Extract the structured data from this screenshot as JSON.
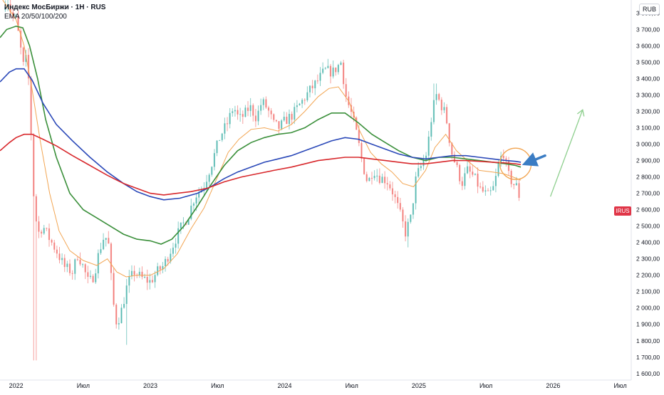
{
  "header": {
    "title": "Индекс МосБиржи · 1Н · RUS",
    "indicator": "EMA 20/50/100/200"
  },
  "currency_label": "RUB",
  "price_tag": "IRUS",
  "colors": {
    "up": "#26a69a",
    "down": "#ef5350",
    "ema20": "#f2a552",
    "ema50": "#3a8f3a",
    "ema100": "#2a48b8",
    "ema200": "#d8282c",
    "arrow_up": "#8ecf8e",
    "arrow_pointer": "#3b7dc4",
    "circle": "#f2a552"
  },
  "chart_data": {
    "type": "line",
    "title": "Индекс МосБиржи · 1Н · RUS",
    "subtitle": "EMA 20/50/100/200",
    "x_ticks": [
      "2022",
      "Июл",
      "2023",
      "Июл",
      "2024",
      "Июл",
      "2025",
      "Июл",
      "2026",
      "Июл"
    ],
    "x_tick_dates": [
      2022.0,
      2022.5,
      2023.0,
      2023.5,
      2024.0,
      2024.5,
      2025.0,
      2025.5,
      2026.0,
      2026.5
    ],
    "y_ticks": [
      "1 600,00",
      "1 700,00",
      "1 800,00",
      "1 900,00",
      "2 000,00",
      "2 100,00",
      "2 200,00",
      "2 300,00",
      "2 400,00",
      "2 500,00",
      "2 600,00",
      "2 700,00",
      "2 800,00",
      "2 900,00",
      "3 000,00",
      "3 100,00",
      "3 200,00",
      "3 300,00",
      "3 400,00",
      "3 500,00",
      "3 600,00",
      "3 700,00",
      "3 800,00"
    ],
    "ylim": [
      1560,
      3880
    ],
    "xlim": [
      2021.88,
      2026.55
    ],
    "grid": false,
    "price_key_points": [
      [
        2021.9,
        3820
      ],
      [
        2021.93,
        3900
      ],
      [
        2021.97,
        3780
      ],
      [
        2022.0,
        3760
      ],
      [
        2022.03,
        3600
      ],
      [
        2022.06,
        3450
      ],
      [
        2022.08,
        3550
      ],
      [
        2022.1,
        3300
      ],
      [
        2022.13,
        2700
      ],
      [
        2022.16,
        2450
      ],
      [
        2022.2,
        2500
      ],
      [
        2022.25,
        2420
      ],
      [
        2022.3,
        2350
      ],
      [
        2022.36,
        2250
      ],
      [
        2022.42,
        2220
      ],
      [
        2022.46,
        2330
      ],
      [
        2022.5,
        2250
      ],
      [
        2022.54,
        2150
      ],
      [
        2022.58,
        2200
      ],
      [
        2022.62,
        2350
      ],
      [
        2022.66,
        2450
      ],
      [
        2022.69,
        2380
      ],
      [
        2022.72,
        2050
      ],
      [
        2022.75,
        1900
      ],
      [
        2022.79,
        2000
      ],
      [
        2022.83,
        2150
      ],
      [
        2022.88,
        2220
      ],
      [
        2022.94,
        2180
      ],
      [
        2023.0,
        2160
      ],
      [
        2023.05,
        2220
      ],
      [
        2023.1,
        2260
      ],
      [
        2023.16,
        2370
      ],
      [
        2023.22,
        2480
      ],
      [
        2023.28,
        2560
      ],
      [
        2023.33,
        2680
      ],
      [
        2023.4,
        2750
      ],
      [
        2023.46,
        2890
      ],
      [
        2023.52,
        3050
      ],
      [
        2023.57,
        3120
      ],
      [
        2023.62,
        3230
      ],
      [
        2023.66,
        3150
      ],
      [
        2023.7,
        3180
      ],
      [
        2023.74,
        3230
      ],
      [
        2023.79,
        3160
      ],
      [
        2023.83,
        3260
      ],
      [
        2023.87,
        3220
      ],
      [
        2023.92,
        3120
      ],
      [
        2023.96,
        3100
      ],
      [
        2024.0,
        3140
      ],
      [
        2024.06,
        3180
      ],
      [
        2024.12,
        3250
      ],
      [
        2024.18,
        3320
      ],
      [
        2024.24,
        3380
      ],
      [
        2024.3,
        3450
      ],
      [
        2024.36,
        3440
      ],
      [
        2024.42,
        3500
      ],
      [
        2024.46,
        3280
      ],
      [
        2024.5,
        3180
      ],
      [
        2024.54,
        3050
      ],
      [
        2024.58,
        2880
      ],
      [
        2024.62,
        2760
      ],
      [
        2024.66,
        2850
      ],
      [
        2024.7,
        2800
      ],
      [
        2024.76,
        2780
      ],
      [
        2024.8,
        2720
      ],
      [
        2024.85,
        2600
      ],
      [
        2024.9,
        2460
      ],
      [
        2024.94,
        2550
      ],
      [
        2024.98,
        2800
      ],
      [
        2025.02,
        2870
      ],
      [
        2025.06,
        2950
      ],
      [
        2025.1,
        3200
      ],
      [
        2025.13,
        3300
      ],
      [
        2025.16,
        3250
      ],
      [
        2025.2,
        3180
      ],
      [
        2025.24,
        2960
      ],
      [
        2025.28,
        2860
      ],
      [
        2025.32,
        2760
      ],
      [
        2025.36,
        2840
      ],
      [
        2025.41,
        2800
      ],
      [
        2025.46,
        2720
      ],
      [
        2025.52,
        2680
      ],
      [
        2025.56,
        2740
      ],
      [
        2025.6,
        2900
      ],
      [
        2025.63,
        2950
      ],
      [
        2025.66,
        2820
      ],
      [
        2025.7,
        2760
      ],
      [
        2025.73,
        2740
      ],
      [
        2025.76,
        2640
      ]
    ],
    "series": [
      {
        "name": "EMA 20",
        "color": "#f2a552",
        "points": [
          [
            2021.9,
            3880
          ],
          [
            2022.0,
            3760
          ],
          [
            2022.06,
            3600
          ],
          [
            2022.12,
            3330
          ],
          [
            2022.18,
            3020
          ],
          [
            2022.25,
            2700
          ],
          [
            2022.32,
            2470
          ],
          [
            2022.4,
            2350
          ],
          [
            2022.5,
            2290
          ],
          [
            2022.6,
            2260
          ],
          [
            2022.68,
            2300
          ],
          [
            2022.75,
            2220
          ],
          [
            2022.82,
            2190
          ],
          [
            2022.9,
            2200
          ],
          [
            2023.0,
            2200
          ],
          [
            2023.1,
            2240
          ],
          [
            2023.2,
            2330
          ],
          [
            2023.3,
            2480
          ],
          [
            2023.4,
            2610
          ],
          [
            2023.5,
            2800
          ],
          [
            2023.58,
            2950
          ],
          [
            2023.66,
            3030
          ],
          [
            2023.75,
            3090
          ],
          [
            2023.85,
            3100
          ],
          [
            2023.95,
            3080
          ],
          [
            2024.05,
            3120
          ],
          [
            2024.15,
            3200
          ],
          [
            2024.25,
            3290
          ],
          [
            2024.33,
            3340
          ],
          [
            2024.4,
            3350
          ],
          [
            2024.48,
            3260
          ],
          [
            2024.56,
            3080
          ],
          [
            2024.64,
            2950
          ],
          [
            2024.72,
            2880
          ],
          [
            2024.8,
            2830
          ],
          [
            2024.88,
            2760
          ],
          [
            2024.96,
            2740
          ],
          [
            2025.05,
            2840
          ],
          [
            2025.12,
            2980
          ],
          [
            2025.2,
            3060
          ],
          [
            2025.28,
            2960
          ],
          [
            2025.36,
            2900
          ],
          [
            2025.45,
            2840
          ],
          [
            2025.55,
            2830
          ],
          [
            2025.63,
            2820
          ],
          [
            2025.7,
            2800
          ],
          [
            2025.76,
            2780
          ]
        ]
      },
      {
        "name": "EMA 50",
        "color": "#3a8f3a",
        "points": [
          [
            2021.88,
            3650
          ],
          [
            2021.93,
            3700
          ],
          [
            2022.0,
            3720
          ],
          [
            2022.05,
            3710
          ],
          [
            2022.1,
            3600
          ],
          [
            2022.16,
            3400
          ],
          [
            2022.22,
            3150
          ],
          [
            2022.3,
            2920
          ],
          [
            2022.4,
            2700
          ],
          [
            2022.5,
            2600
          ],
          [
            2022.6,
            2550
          ],
          [
            2022.7,
            2500
          ],
          [
            2022.8,
            2450
          ],
          [
            2022.9,
            2420
          ],
          [
            2023.0,
            2410
          ],
          [
            2023.08,
            2390
          ],
          [
            2023.16,
            2420
          ],
          [
            2023.25,
            2500
          ],
          [
            2023.35,
            2620
          ],
          [
            2023.45,
            2750
          ],
          [
            2023.55,
            2870
          ],
          [
            2023.65,
            2960
          ],
          [
            2023.75,
            3010
          ],
          [
            2023.85,
            3040
          ],
          [
            2023.95,
            3060
          ],
          [
            2024.05,
            3070
          ],
          [
            2024.15,
            3100
          ],
          [
            2024.25,
            3150
          ],
          [
            2024.35,
            3190
          ],
          [
            2024.45,
            3190
          ],
          [
            2024.55,
            3130
          ],
          [
            2024.65,
            3060
          ],
          [
            2024.75,
            3010
          ],
          [
            2024.85,
            2960
          ],
          [
            2024.95,
            2920
          ],
          [
            2025.05,
            2900
          ],
          [
            2025.15,
            2920
          ],
          [
            2025.25,
            2920
          ],
          [
            2025.35,
            2910
          ],
          [
            2025.45,
            2900
          ],
          [
            2025.55,
            2890
          ],
          [
            2025.65,
            2880
          ],
          [
            2025.72,
            2870
          ],
          [
            2025.76,
            2860
          ]
        ]
      },
      {
        "name": "EMA 100",
        "color": "#2a48b8",
        "points": [
          [
            2021.88,
            3380
          ],
          [
            2021.95,
            3440
          ],
          [
            2022.0,
            3460
          ],
          [
            2022.06,
            3460
          ],
          [
            2022.12,
            3390
          ],
          [
            2022.2,
            3250
          ],
          [
            2022.3,
            3120
          ],
          [
            2022.42,
            3020
          ],
          [
            2022.55,
            2920
          ],
          [
            2022.68,
            2830
          ],
          [
            2022.8,
            2760
          ],
          [
            2022.9,
            2710
          ],
          [
            2023.0,
            2680
          ],
          [
            2023.1,
            2660
          ],
          [
            2023.22,
            2670
          ],
          [
            2023.35,
            2700
          ],
          [
            2023.45,
            2740
          ],
          [
            2023.55,
            2790
          ],
          [
            2023.65,
            2830
          ],
          [
            2023.75,
            2860
          ],
          [
            2023.85,
            2890
          ],
          [
            2023.95,
            2910
          ],
          [
            2024.05,
            2930
          ],
          [
            2024.15,
            2960
          ],
          [
            2024.25,
            2990
          ],
          [
            2024.35,
            3020
          ],
          [
            2024.45,
            3040
          ],
          [
            2024.55,
            3030
          ],
          [
            2024.65,
            3000
          ],
          [
            2024.75,
            2970
          ],
          [
            2024.85,
            2940
          ],
          [
            2024.95,
            2920
          ],
          [
            2025.05,
            2910
          ],
          [
            2025.15,
            2920
          ],
          [
            2025.25,
            2930
          ],
          [
            2025.35,
            2930
          ],
          [
            2025.45,
            2920
          ],
          [
            2025.55,
            2910
          ],
          [
            2025.65,
            2900
          ],
          [
            2025.72,
            2895
          ],
          [
            2025.76,
            2890
          ]
        ]
      },
      {
        "name": "EMA 200",
        "color": "#d8282c",
        "points": [
          [
            2021.88,
            2960
          ],
          [
            2021.95,
            3010
          ],
          [
            2022.0,
            3040
          ],
          [
            2022.06,
            3060
          ],
          [
            2022.12,
            3060
          ],
          [
            2022.2,
            3030
          ],
          [
            2022.3,
            2990
          ],
          [
            2022.42,
            2930
          ],
          [
            2022.55,
            2870
          ],
          [
            2022.68,
            2810
          ],
          [
            2022.8,
            2760
          ],
          [
            2022.9,
            2730
          ],
          [
            2023.0,
            2700
          ],
          [
            2023.1,
            2690
          ],
          [
            2023.2,
            2700
          ],
          [
            2023.3,
            2710
          ],
          [
            2023.42,
            2730
          ],
          [
            2023.55,
            2770
          ],
          [
            2023.68,
            2800
          ],
          [
            2023.8,
            2820
          ],
          [
            2023.92,
            2840
          ],
          [
            2024.05,
            2860
          ],
          [
            2024.15,
            2880
          ],
          [
            2024.25,
            2900
          ],
          [
            2024.35,
            2910
          ],
          [
            2024.45,
            2920
          ],
          [
            2024.55,
            2920
          ],
          [
            2024.65,
            2910
          ],
          [
            2024.75,
            2900
          ],
          [
            2024.85,
            2890
          ],
          [
            2024.95,
            2880
          ],
          [
            2025.05,
            2880
          ],
          [
            2025.15,
            2890
          ],
          [
            2025.25,
            2900
          ],
          [
            2025.35,
            2900
          ],
          [
            2025.45,
            2895
          ],
          [
            2025.55,
            2890
          ],
          [
            2025.65,
            2885
          ],
          [
            2025.72,
            2880
          ],
          [
            2025.76,
            2875
          ]
        ]
      }
    ],
    "annotations": {
      "circle_center": [
        2025.72,
        2880
      ],
      "pointer_arrow_from": [
        2025.94,
        2930
      ],
      "pointer_arrow_to": [
        2025.82,
        2890
      ],
      "trend_arrow_from": [
        2025.98,
        2680
      ],
      "trend_arrow_to": [
        2026.22,
        3210
      ]
    }
  }
}
